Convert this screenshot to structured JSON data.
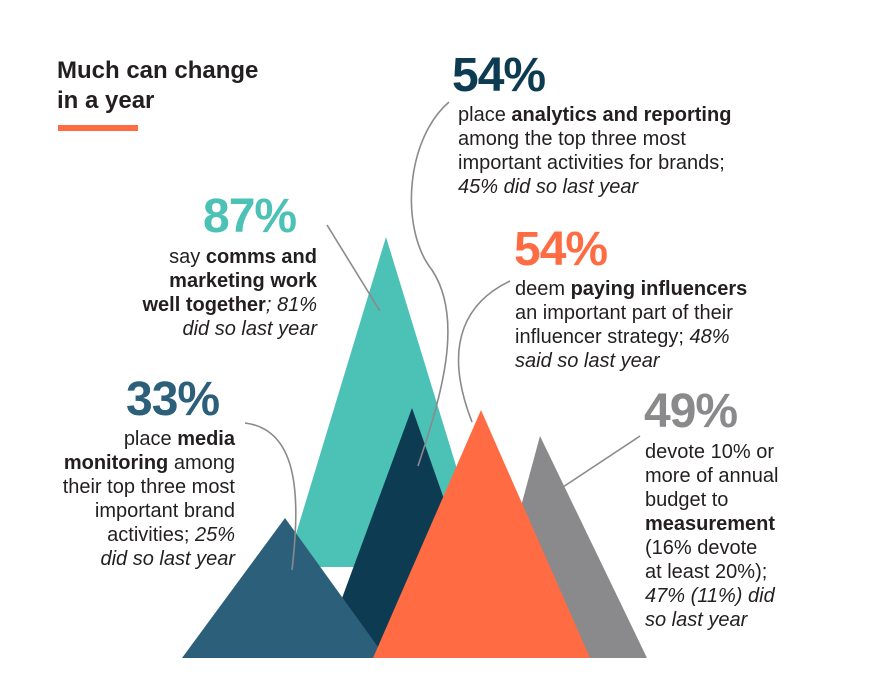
{
  "title": {
    "line1": "Much can change",
    "line2": "in a year"
  },
  "colors": {
    "teal": "#4cc1b6",
    "navy": "#0d3c52",
    "steel": "#2c5f7a",
    "orange": "#ff6b43",
    "gray": "#8a8a8c",
    "dark": "#231f20"
  },
  "stats": {
    "analytics": {
      "value": "54%",
      "pre": "place ",
      "bold": "analytics and reporting",
      "line2": "among the top three most",
      "line3": "important activities for brands;",
      "line4": "45% did so last year"
    },
    "comms": {
      "value": "87%",
      "l1pre": "say ",
      "l1bold": "comms and",
      "l2bold": "marketing work",
      "l3bold": "well together",
      "l3rest": "; 81%",
      "l4": "did so last year"
    },
    "influencers": {
      "value": "54%",
      "l1pre": "deem ",
      "l1bold": "paying influencers",
      "l2": "an important part of their",
      "l3pre": "influencer strategy; ",
      "l3it": "48%",
      "l4": "said so last year"
    },
    "monitoring": {
      "value": "33%",
      "l1pre": "place ",
      "l1bold": "media",
      "l2bold": "monitoring",
      "l2rest": " among",
      "l3": "their top three most",
      "l4": "important brand",
      "l5pre": "activities; ",
      "l5it": "25%",
      "l6": "did so last year"
    },
    "measurement": {
      "value": "49%",
      "l1": "devote 10% or",
      "l2": "more of annual",
      "l3": "budget to",
      "l4bold": "measurement",
      "l5": "(16% devote",
      "l6": "at least 20%);",
      "l7": "47% (11%) did",
      "l8": "so last year"
    }
  }
}
